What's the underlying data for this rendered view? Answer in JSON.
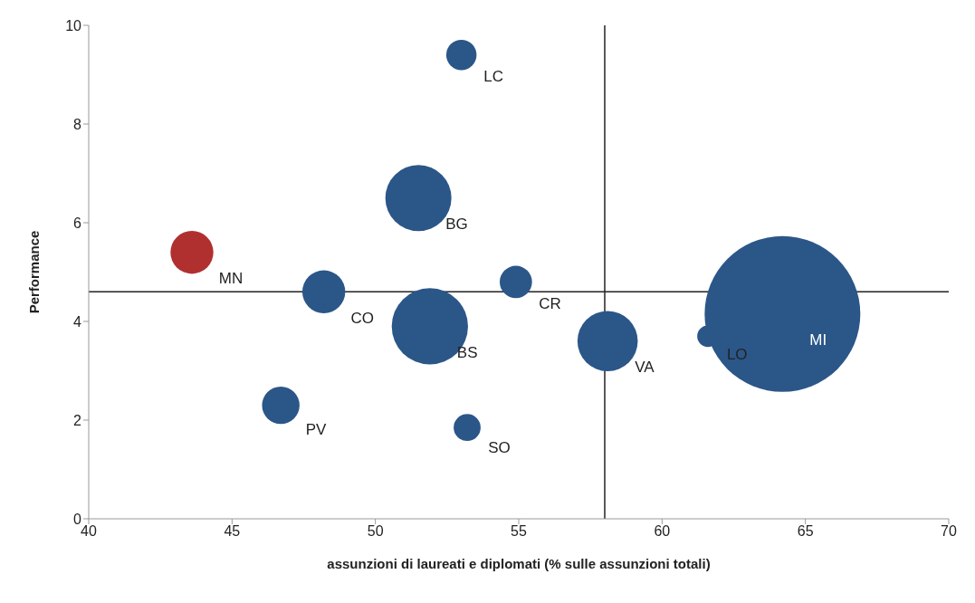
{
  "chart_data": {
    "type": "bubble",
    "xlabel": "assunzioni di laureati e diplomati (% sulle assunzioni totali)",
    "ylabel": "Performance",
    "xlim": [
      40,
      70
    ],
    "xticks": [
      40,
      45,
      50,
      55,
      60,
      65,
      70
    ],
    "ylim": [
      0,
      10
    ],
    "yticks": [
      0,
      2,
      4,
      6,
      8,
      10
    ],
    "grid": false,
    "legend": false,
    "series": [
      {
        "color": "#2b5688",
        "x": [
          53.0,
          51.5,
          48.2,
          54.9,
          51.9,
          58.1,
          61.6,
          64.2,
          46.7,
          53.2
        ],
        "values": [
          9.4,
          6.5,
          4.6,
          4.8,
          3.9,
          3.6,
          3.7,
          4.15,
          2.3,
          1.85
        ],
        "sizes": [
          0.038,
          0.18,
          0.076,
          0.043,
          0.24,
          0.15,
          0.019,
          1,
          0.058,
          0.03
        ]
      },
      {
        "color": "#b0302f",
        "x": [
          43.6
        ],
        "values": [
          5.4
        ],
        "sizes": [
          0.076
        ]
      }
    ],
    "ref_lines": [
      {
        "axis": "x",
        "value": 58,
        "color": "#222222"
      },
      {
        "axis": "y",
        "value": 4.6,
        "color": "#222222"
      }
    ],
    "annotations": [
      {
        "text": "LC",
        "x": 53.0,
        "y": 9.4
      },
      {
        "text": "BG",
        "x": 51.5,
        "y": 6.5
      },
      {
        "text": "MN",
        "x": 43.6,
        "y": 5.4
      },
      {
        "text": "CO",
        "x": 48.2,
        "y": 4.6
      },
      {
        "text": "CR",
        "x": 54.9,
        "y": 4.8
      },
      {
        "text": "BS",
        "x": 51.9,
        "y": 3.9
      },
      {
        "text": "VA",
        "x": 58.1,
        "y": 3.6
      },
      {
        "text": "LO",
        "x": 61.6,
        "y": 3.7
      },
      {
        "text": "MI",
        "x": 64.2,
        "y": 4.15
      },
      {
        "text": "PV",
        "x": 46.7,
        "y": 2.3
      },
      {
        "text": "SO",
        "x": 53.2,
        "y": 1.85
      }
    ]
  }
}
